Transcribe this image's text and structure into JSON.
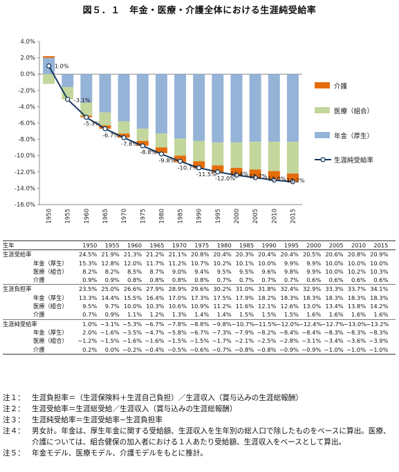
{
  "title": "図５．１　年金・医療・介護全体における生涯純受給率",
  "chart_data": {
    "type": "bar",
    "stacked": true,
    "categories": [
      "1950",
      "1955",
      "1960",
      "1965",
      "1970",
      "1975",
      "1980",
      "1985",
      "1990",
      "1995",
      "2000",
      "2005",
      "2010",
      "2015"
    ],
    "ylim": [
      -16.0,
      4.0
    ],
    "y_ticks": [
      "4.0%",
      "2.0%",
      "0.0%",
      "-2.0%",
      "-4.0%",
      "-6.0%",
      "-8.0%",
      "-10.0%",
      "-12.0%",
      "-14.0%",
      "-16.0%"
    ],
    "grid": false,
    "legend_position": "right",
    "series": [
      {
        "name": "介護",
        "kind": "bar",
        "color": "#E46C0A",
        "values": [
          0.2,
          0.0,
          -0.2,
          -0.4,
          -0.5,
          -0.6,
          -0.7,
          -0.8,
          -0.8,
          -0.9,
          -0.9,
          -1.0,
          -1.0,
          -1.0
        ]
      },
      {
        "name": "医療（組合）",
        "kind": "bar",
        "color": "#C3D69B",
        "values": [
          -1.2,
          -1.5,
          -1.6,
          -1.6,
          -1.5,
          -1.5,
          -1.7,
          -2.1,
          -2.5,
          -2.8,
          -3.1,
          -3.4,
          -3.6,
          -3.9
        ]
      },
      {
        "name": "年金（厚生）",
        "kind": "bar",
        "color": "#95B3D7",
        "values": [
          2.0,
          -1.6,
          -3.5,
          -4.7,
          -5.8,
          -6.7,
          -7.3,
          -7.9,
          -8.2,
          -8.4,
          -8.4,
          -8.3,
          -8.3,
          -8.3
        ]
      },
      {
        "name": "生涯純受給率",
        "kind": "line",
        "color": "#17375E",
        "values": [
          1.0,
          -3.1,
          -5.3,
          -6.7,
          -7.8,
          -8.8,
          -9.8,
          -10.7,
          -11.5,
          -12.0,
          -12.4,
          -12.7,
          -13.0,
          -13.2
        ]
      }
    ],
    "data_labels": [
      "1.0%",
      "-3.1%",
      "-5.3%",
      "-6.7%",
      "-7.8%",
      "-8.8%",
      "-9.8%",
      "-10.7%",
      "-11.5%",
      "-12.0%",
      "-12.4%",
      "-12.7%",
      "-13.0%",
      "-13.2%"
    ]
  },
  "table": {
    "header_label": "生年",
    "years": [
      "1950",
      "1955",
      "1960",
      "1965",
      "1970",
      "1975",
      "1980",
      "1985",
      "1990",
      "1995",
      "2000",
      "2005",
      "2010",
      "2015"
    ],
    "groups": [
      {
        "rows": [
          {
            "label": "生涯受給率",
            "sub": false,
            "values": [
              "24.5%",
              "21.9%",
              "21.3%",
              "21.2%",
              "21.1%",
              "20.8%",
              "20.4%",
              "20.3%",
              "20.4%",
              "20.4%",
              "20.5%",
              "20.6%",
              "20.8%",
              "20.9%"
            ]
          },
          {
            "label": "年金（厚生）",
            "sub": true,
            "values": [
              "15.3%",
              "12.8%",
              "12.0%",
              "11.7%",
              "11.2%",
              "10.7%",
              "10.2%",
              "10.1%",
              "10.0%",
              "9.9%",
              "9.9%",
              "10.0%",
              "10.0%",
              "10.0%"
            ]
          },
          {
            "label": "医療（組合）",
            "sub": true,
            "values": [
              "8.2%",
              "8.2%",
              "8.5%",
              "8.7%",
              "9.0%",
              "9.4%",
              "9.5%",
              "9.5%",
              "9.6%",
              "9.8%",
              "9.9%",
              "10.0%",
              "10.2%",
              "10.3%"
            ]
          },
          {
            "label": "介護",
            "sub": true,
            "values": [
              "0.9%",
              "0.9%",
              "0.8%",
              "0.8%",
              "0.8%",
              "0.8%",
              "0.7%",
              "0.7%",
              "0.7%",
              "0.7%",
              "0.6%",
              "0.6%",
              "0.6%",
              "0.6%"
            ]
          }
        ]
      },
      {
        "rows": [
          {
            "label": "生涯負担率",
            "sub": false,
            "values": [
              "23.5%",
              "25.0%",
              "26.6%",
              "27.9%",
              "28.9%",
              "29.6%",
              "30.2%",
              "31.0%",
              "31.8%",
              "32.4%",
              "32.9%",
              "33.3%",
              "33.7%",
              "34.1%"
            ]
          },
          {
            "label": "年金（厚生）",
            "sub": true,
            "values": [
              "13.3%",
              "14.4%",
              "15.5%",
              "16.4%",
              "17.0%",
              "17.3%",
              "17.5%",
              "17.9%",
              "18.2%",
              "18.3%",
              "18.3%",
              "18.3%",
              "18.3%",
              "18.3%"
            ]
          },
          {
            "label": "医療（組合）",
            "sub": true,
            "values": [
              "9.5%",
              "9.7%",
              "10.0%",
              "10.3%",
              "10.6%",
              "10.9%",
              "11.2%",
              "11.6%",
              "12.1%",
              "12.6%",
              "13.0%",
              "13.4%",
              "13.8%",
              "14.2%"
            ]
          },
          {
            "label": "介護",
            "sub": true,
            "values": [
              "0.7%",
              "0.9%",
              "1.1%",
              "1.2%",
              "1.3%",
              "1.4%",
              "1.4%",
              "1.5%",
              "1.5%",
              "1.5%",
              "1.6%",
              "1.6%",
              "1.6%",
              "1.6%"
            ]
          }
        ]
      },
      {
        "rows": [
          {
            "label": "生涯純受給率",
            "sub": false,
            "values": [
              "1.0%",
              "−3.1%",
              "−5.3%",
              "−6.7%",
              "−7.8%",
              "−8.8%",
              "−9.8%",
              "−10.7%",
              "−11.5%",
              "−12.0%",
              "−12.4%",
              "−12.7%",
              "−13.0%",
              "−13.2%"
            ]
          },
          {
            "label": "年金（厚生）",
            "sub": true,
            "values": [
              "2.0%",
              "−1.6%",
              "−3.5%",
              "−4.7%",
              "−5.8%",
              "−6.7%",
              "−7.3%",
              "−7.9%",
              "−8.2%",
              "−8.4%",
              "−8.4%",
              "−8.3%",
              "−8.3%",
              "−8.3%"
            ]
          },
          {
            "label": "医療（組合）",
            "sub": true,
            "values": [
              "−1.2%",
              "−1.5%",
              "−1.6%",
              "−1.6%",
              "−1.5%",
              "−1.5%",
              "−1.7%",
              "−2.1%",
              "−2.5%",
              "−2.8%",
              "−3.1%",
              "−3.4%",
              "−3.6%",
              "−3.9%"
            ]
          },
          {
            "label": "介護",
            "sub": true,
            "values": [
              "0.2%",
              "0.0%",
              "−0.2%",
              "−0.4%",
              "−0.5%",
              "−0.6%",
              "−0.7%",
              "−0.8%",
              "−0.8%",
              "−0.9%",
              "−0.9%",
              "−1.0%",
              "−1.0%",
              "−1.0%"
            ]
          }
        ]
      }
    ]
  },
  "notes": [
    {
      "key": "注１：",
      "text": "生涯負担率＝（生涯保険料＋生涯自己負担）／生涯収入（賞与込みの生涯総報酬）"
    },
    {
      "key": "注２：",
      "text": "生涯受給率＝生涯総受給／生涯収入（賞与込みの生涯総報酬）"
    },
    {
      "key": "注３：",
      "text": "生涯純受給率＝生涯受給率−生涯負担率"
    },
    {
      "key": "注４：",
      "text": "男女計。年金は、厚生年金に関する受給額、生涯収入を生年別の総人口で除したものをベースに算出。医療、介護については、組合健保の加入者における１人あたり受給額、生涯収入をベースとして算出。"
    },
    {
      "key": "注５：",
      "text": "年金モデル、医療モデル、介護モデルをもとに推計。"
    }
  ]
}
